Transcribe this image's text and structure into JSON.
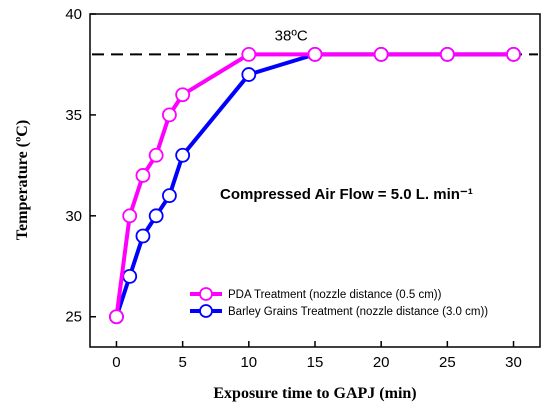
{
  "chart_data": {
    "type": "line",
    "xlabel": "Exposure time to GAPJ (min)",
    "ylabel": "Temperature (ºC)",
    "xlim": [
      -2,
      32
    ],
    "ylim": [
      23.5,
      40
    ],
    "x_ticks": [
      0,
      5,
      10,
      15,
      20,
      25,
      30
    ],
    "y_ticks": [
      25,
      30,
      35,
      40
    ],
    "grid": false,
    "legend_position": "lower-right",
    "reference_line": {
      "y": 38,
      "style": "dashed",
      "label": "38ºC"
    },
    "annotation": "Compressed Air Flow = 5.0 L. min⁻¹",
    "series": [
      {
        "name": "PDA Treatment (nozzle distance (0.5 cm))",
        "color": "#ff00ff",
        "x": [
          0,
          1,
          2,
          3,
          4,
          5,
          10,
          15,
          20,
          25,
          30
        ],
        "y": [
          25,
          30,
          32,
          33,
          35,
          36,
          38,
          38,
          38,
          38,
          38
        ]
      },
      {
        "name": "Barley Grains Treatment (nozzle distance (3.0 cm))",
        "color": "#0000ff",
        "x": [
          0,
          1,
          2,
          3,
          4,
          5,
          10,
          15,
          20,
          25,
          30
        ],
        "y": [
          25,
          27,
          29,
          30,
          31,
          33,
          37,
          38,
          38,
          38,
          38
        ]
      }
    ]
  }
}
